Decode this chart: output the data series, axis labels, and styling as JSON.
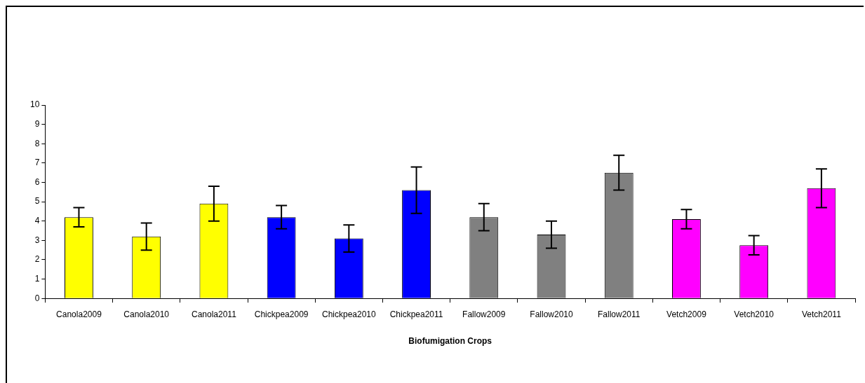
{
  "chart_data": {
    "type": "bar",
    "xlabel": "Biofumigation Crops",
    "categories": [
      "Canola2009",
      "Canola2010",
      "Canola2011",
      "Chickpea2009",
      "Chickpea2010",
      "Chickpea2011",
      "Fallow2009",
      "Fallow2010",
      "Fallow2011",
      "Vetch2009",
      "Vetch2010",
      "Vetch2011"
    ],
    "values": [
      4.2,
      3.2,
      4.9,
      4.2,
      3.1,
      5.6,
      4.2,
      3.3,
      6.5,
      4.1,
      2.75,
      5.7
    ],
    "errors": [
      0.5,
      0.7,
      0.9,
      0.6,
      0.7,
      1.2,
      0.7,
      0.7,
      0.9,
      0.5,
      0.5,
      1.0
    ],
    "colors": [
      "#ffff00",
      "#ffff00",
      "#ffff00",
      "#0000ff",
      "#0000ff",
      "#0000ff",
      "#808080",
      "#808080",
      "#808080",
      "#ff00ff",
      "#ff00ff",
      "#ff00ff"
    ],
    "ylim": [
      0,
      10
    ],
    "yticks": [
      0,
      1,
      2,
      3,
      4,
      5,
      6,
      7,
      8,
      9,
      10
    ],
    "grid": false,
    "legend": false
  }
}
